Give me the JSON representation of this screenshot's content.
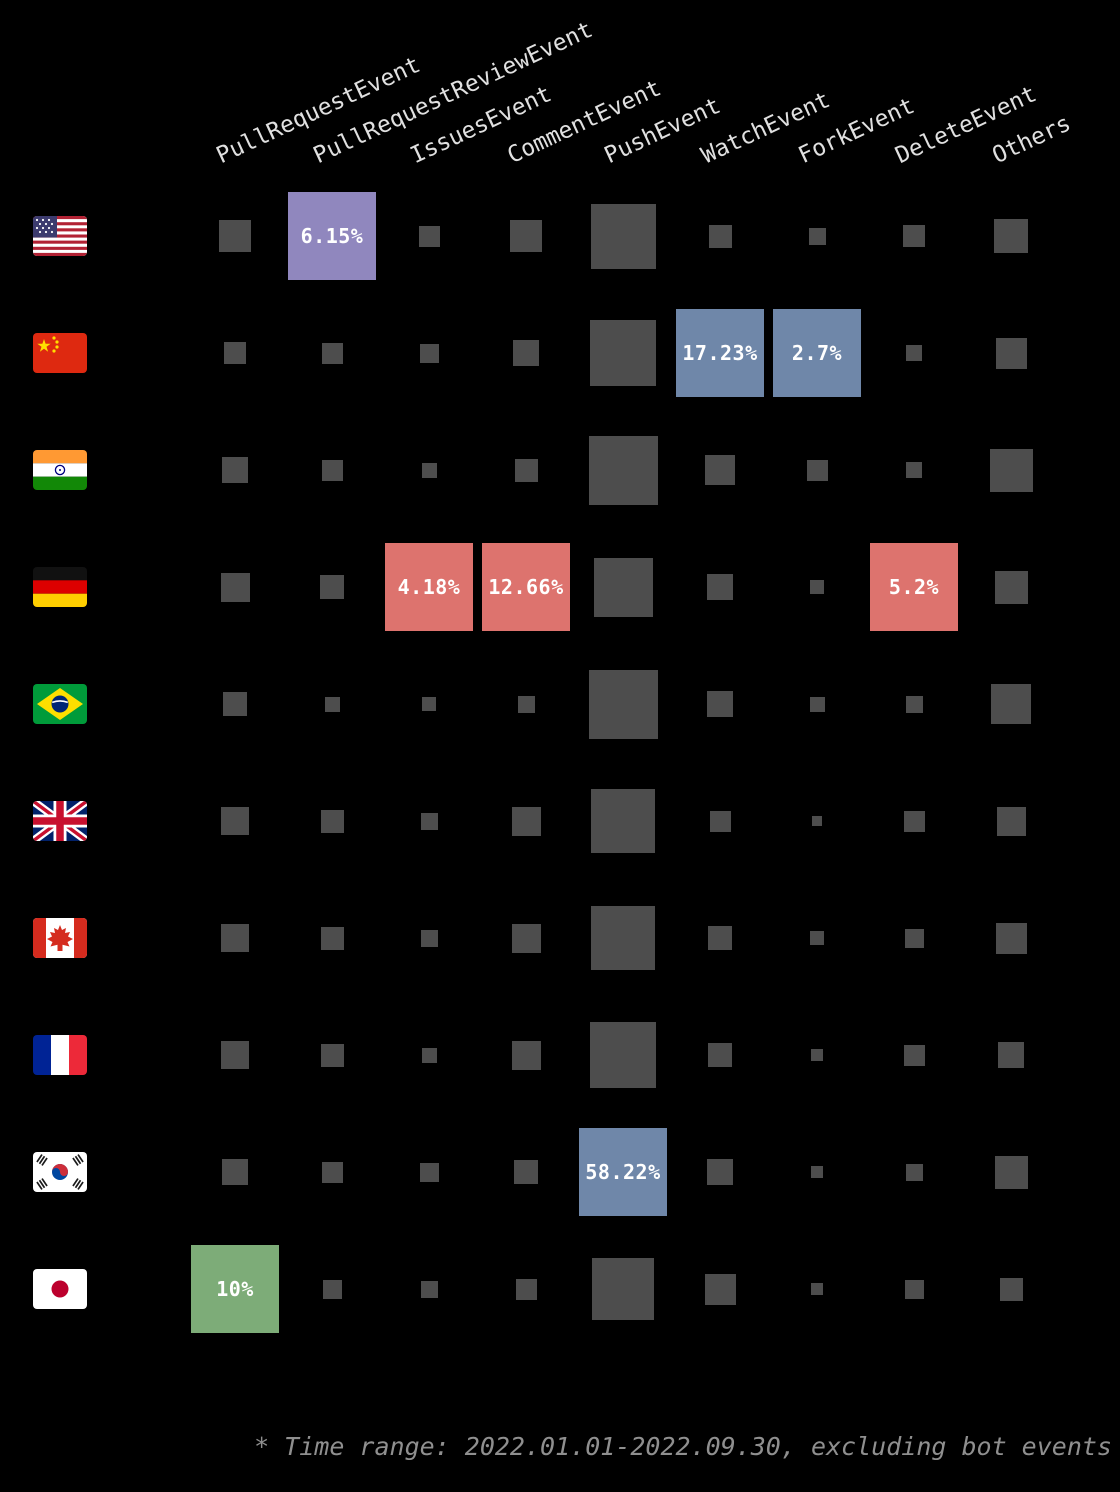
{
  "chart_data": {
    "type": "heatmap",
    "title": "",
    "columns": [
      "PullRequestEvent",
      "PullRequestReviewEvent",
      "IssuesEvent",
      "CommentEvent",
      "PushEvent",
      "WatchEvent",
      "ForkEvent",
      "DeleteEvent",
      "Others"
    ],
    "size_unit": "square side in px, proportional to event share; highlighted cells show the exact percentage",
    "palette": {
      "grey": "#4d4d4d",
      "purple": "#9087be",
      "blue": "#6f87a9",
      "red": "#dd736e",
      "green": "#7dac78"
    },
    "rows": [
      {
        "country": "United States",
        "flag": "us",
        "cells": [
          {
            "s": 32
          },
          {
            "s": 88,
            "label": "6.15%",
            "color": "purple"
          },
          {
            "s": 21
          },
          {
            "s": 32
          },
          {
            "s": 65
          },
          {
            "s": 23
          },
          {
            "s": 17
          },
          {
            "s": 22
          },
          {
            "s": 34
          }
        ]
      },
      {
        "country": "China",
        "flag": "cn",
        "cells": [
          {
            "s": 22
          },
          {
            "s": 21
          },
          {
            "s": 19
          },
          {
            "s": 26
          },
          {
            "s": 66
          },
          {
            "s": 88,
            "label": "17.23%",
            "color": "blue"
          },
          {
            "s": 88,
            "label": "2.7%",
            "color": "blue"
          },
          {
            "s": 16
          },
          {
            "s": 31
          }
        ]
      },
      {
        "country": "India",
        "flag": "in",
        "cells": [
          {
            "s": 26
          },
          {
            "s": 21
          },
          {
            "s": 15
          },
          {
            "s": 23
          },
          {
            "s": 69
          },
          {
            "s": 30
          },
          {
            "s": 21
          },
          {
            "s": 16
          },
          {
            "s": 43
          }
        ]
      },
      {
        "country": "Germany",
        "flag": "de",
        "cells": [
          {
            "s": 29
          },
          {
            "s": 24
          },
          {
            "s": 88,
            "label": "4.18%",
            "color": "red"
          },
          {
            "s": 88,
            "label": "12.66%",
            "color": "red"
          },
          {
            "s": 59
          },
          {
            "s": 26
          },
          {
            "s": 14
          },
          {
            "s": 88,
            "label": "5.2%",
            "color": "red"
          },
          {
            "s": 33
          }
        ]
      },
      {
        "country": "Brazil",
        "flag": "br",
        "cells": [
          {
            "s": 24
          },
          {
            "s": 15
          },
          {
            "s": 14
          },
          {
            "s": 17
          },
          {
            "s": 69
          },
          {
            "s": 26
          },
          {
            "s": 15
          },
          {
            "s": 17
          },
          {
            "s": 40
          }
        ]
      },
      {
        "country": "United Kingdom",
        "flag": "gb",
        "cells": [
          {
            "s": 28
          },
          {
            "s": 23
          },
          {
            "s": 17
          },
          {
            "s": 29
          },
          {
            "s": 64
          },
          {
            "s": 21
          },
          {
            "s": 10
          },
          {
            "s": 21
          },
          {
            "s": 29
          }
        ]
      },
      {
        "country": "Canada",
        "flag": "ca",
        "cells": [
          {
            "s": 28
          },
          {
            "s": 23
          },
          {
            "s": 17
          },
          {
            "s": 29
          },
          {
            "s": 64
          },
          {
            "s": 24
          },
          {
            "s": 14
          },
          {
            "s": 19
          },
          {
            "s": 31
          }
        ]
      },
      {
        "country": "France",
        "flag": "fr",
        "cells": [
          {
            "s": 28
          },
          {
            "s": 23
          },
          {
            "s": 15
          },
          {
            "s": 29
          },
          {
            "s": 66
          },
          {
            "s": 24
          },
          {
            "s": 12
          },
          {
            "s": 21
          },
          {
            "s": 26
          }
        ]
      },
      {
        "country": "South Korea",
        "flag": "kr",
        "cells": [
          {
            "s": 26
          },
          {
            "s": 21
          },
          {
            "s": 19
          },
          {
            "s": 24
          },
          {
            "s": 88,
            "label": "58.22%",
            "color": "blue"
          },
          {
            "s": 26
          },
          {
            "s": 12
          },
          {
            "s": 17
          },
          {
            "s": 33
          }
        ]
      },
      {
        "country": "Japan",
        "flag": "jp",
        "cells": [
          {
            "s": 88,
            "label": "10%",
            "color": "green"
          },
          {
            "s": 19
          },
          {
            "s": 17
          },
          {
            "s": 21
          },
          {
            "s": 62
          },
          {
            "s": 31
          },
          {
            "s": 12
          },
          {
            "s": 19
          },
          {
            "s": 23
          }
        ]
      }
    ],
    "footnote": "* Time range: 2022.01.01-2022.09.30, excluding bot events",
    "legend_position": "none",
    "grid": false
  }
}
